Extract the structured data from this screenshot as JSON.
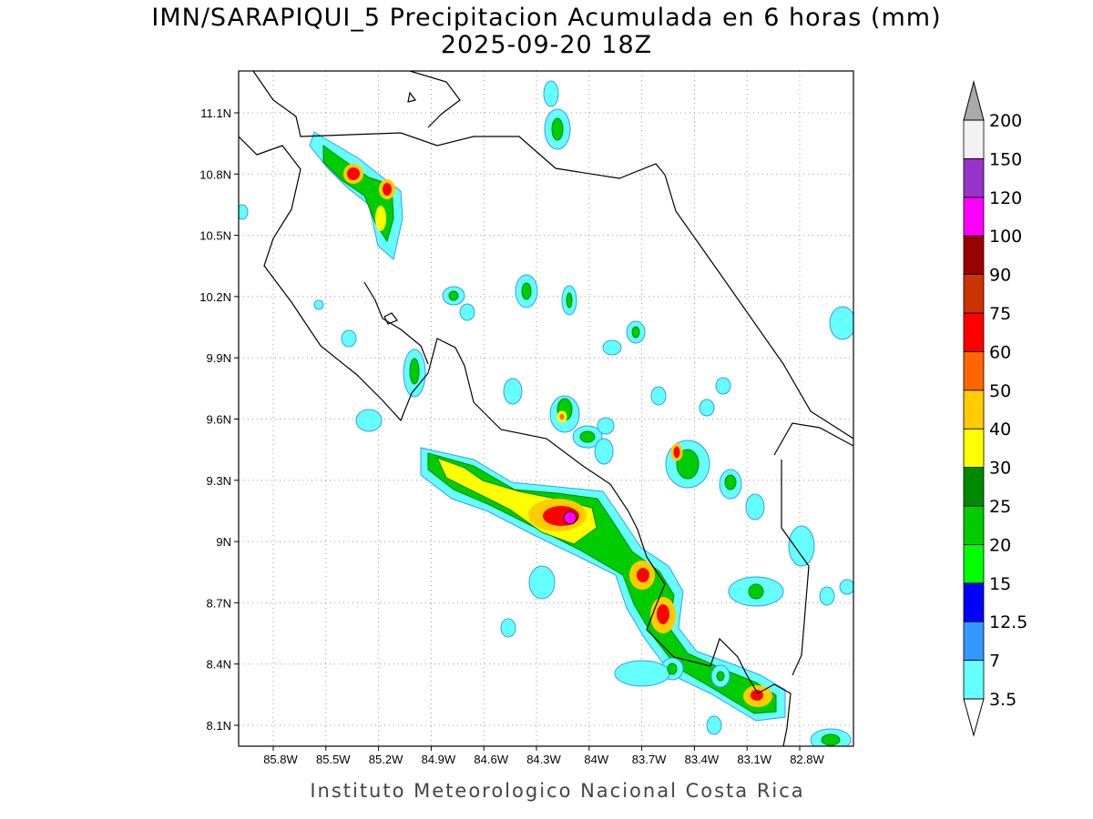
{
  "header": {
    "title": "IMN/SARAPIQUI_5 Precipitacion Acumulada en 6 horas (mm)",
    "subtitle": "2025-09-20 18Z"
  },
  "map": {
    "lon_labels": [
      "85.8W",
      "85.5W",
      "85.2W",
      "84.9W",
      "84.6W",
      "84.3W",
      "84W",
      "83.7W",
      "83.4W",
      "83.1W",
      "82.8W"
    ],
    "lat_labels": [
      "11.1N",
      "10.8N",
      "10.5N",
      "10.2N",
      "9.9N",
      "9.6N",
      "9.3N",
      "9N",
      "8.7N",
      "8.4N",
      "8.1N"
    ]
  },
  "colorbar": {
    "levels": [
      3.5,
      7,
      12.5,
      15,
      20,
      25,
      30,
      40,
      50,
      60,
      75,
      90,
      100,
      120,
      150,
      200
    ],
    "colors": [
      "#66ffff",
      "#3399ff",
      "#0000ff",
      "#00ff00",
      "#00cc00",
      "#008800",
      "#ffff00",
      "#ffcc00",
      "#ff6600",
      "#ff0000",
      "#cc3300",
      "#990000",
      "#ff00ff",
      "#9933cc",
      "#f2f2f2"
    ],
    "under_color": "#ffffff",
    "over_color": "#aaaaaa"
  },
  "footer": "Instituto Meteorologico Nacional Costa Rica"
}
